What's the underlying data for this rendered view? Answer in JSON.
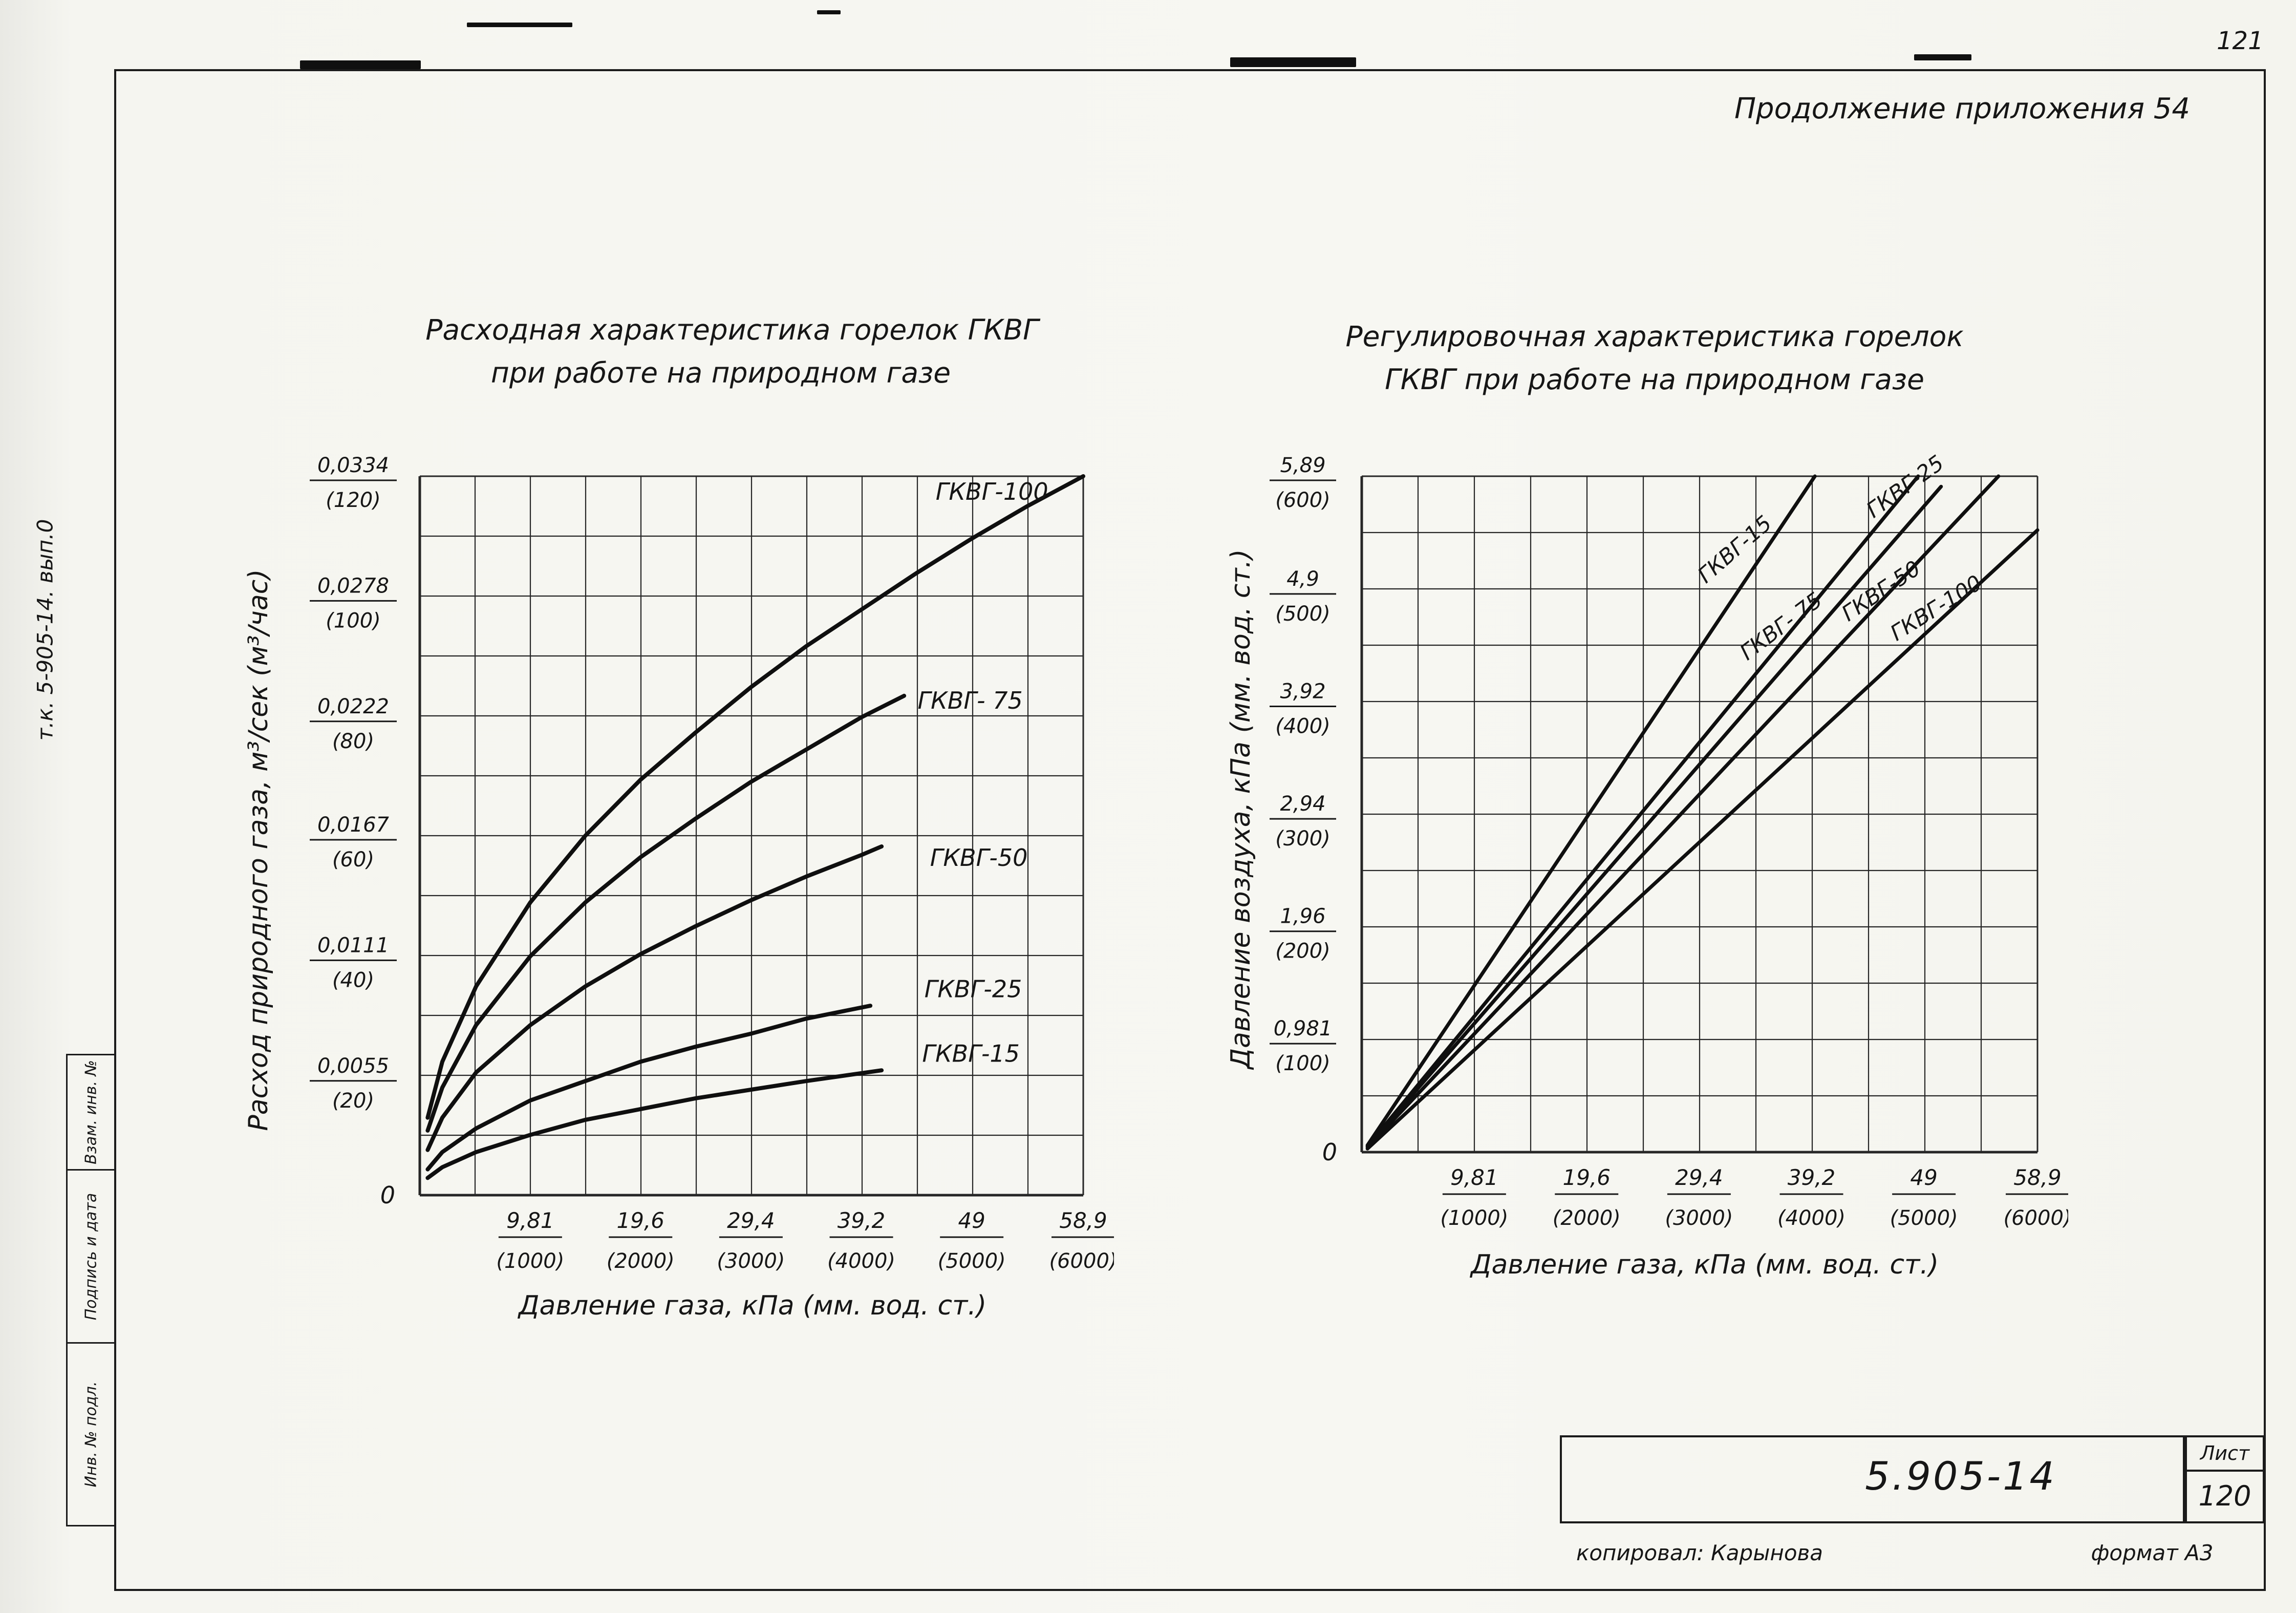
{
  "page": {
    "page_number": "121",
    "header": "Продолжение приложения 54",
    "side_note": "т.к. 5-905-14. вып.0",
    "stamp_cells": [
      "Взам. инв. №",
      "Подпись и дата",
      "Инв. № подл."
    ],
    "title_block": {
      "doc_number": "5.905-14",
      "sheet_label": "Лист",
      "sheet_number": "120"
    },
    "footer": {
      "copied_by": "копировал: Карынова",
      "format": "формат А3"
    }
  },
  "chart_data": [
    {
      "type": "line",
      "title_lines": [
        "Расходная характеристика горелок ГКВГ",
        "при работе на природном газе"
      ],
      "xlabel": "Давление газа, кПа (мм. вод. ст.)",
      "ylabel": "Расход природного газа, м³/сек (м³/час)",
      "xlim": [
        0,
        58.9
      ],
      "ylim": [
        0,
        0.0334
      ],
      "grid": {
        "cols": 12,
        "rows": 12,
        "on": true
      },
      "origin_label": "0",
      "x_ticks": [
        {
          "value": 9.81,
          "label": "9,81",
          "sub": "(1000)"
        },
        {
          "value": 19.6,
          "label": "19,6",
          "sub": "(2000)"
        },
        {
          "value": 29.4,
          "label": "29,4",
          "sub": "(3000)"
        },
        {
          "value": 39.2,
          "label": "39,2",
          "sub": "(4000)"
        },
        {
          "value": 49.0,
          "label": "49",
          "sub": "(5000)"
        },
        {
          "value": 58.9,
          "label": "58,9",
          "sub": "(6000)"
        }
      ],
      "y_ticks": [
        {
          "value": 0.0334,
          "label": "0,0334",
          "sub": "(120)"
        },
        {
          "value": 0.0278,
          "label": "0,0278",
          "sub": "(100)"
        },
        {
          "value": 0.0222,
          "label": "0,0222",
          "sub": "(80)"
        },
        {
          "value": 0.0167,
          "label": "0,0167",
          "sub": "(60)"
        },
        {
          "value": 0.0111,
          "label": "0,0111",
          "sub": "(40)"
        },
        {
          "value": 0.0055,
          "label": "0,0055",
          "sub": "(20)"
        }
      ],
      "series": [
        {
          "name": "ГКВГ-100",
          "label": "ГКВГ-100",
          "label_at": {
            "x": 45.8,
            "y": 0.0323,
            "rotate": 0
          },
          "points": [
            [
              0.7,
              0.0036
            ],
            [
              2,
              0.0062
            ],
            [
              5,
              0.0097
            ],
            [
              9.81,
              0.0136
            ],
            [
              14.7,
              0.0167
            ],
            [
              19.6,
              0.0193
            ],
            [
              24.5,
              0.0215
            ],
            [
              29.4,
              0.0236
            ],
            [
              34.3,
              0.0255
            ],
            [
              39.2,
              0.0272
            ],
            [
              44.1,
              0.0289
            ],
            [
              49,
              0.0305
            ],
            [
              53.9,
              0.032
            ],
            [
              58.9,
              0.0334
            ]
          ]
        },
        {
          "name": "ГКВГ-75",
          "label": "ГКВГ- 75",
          "label_at": {
            "x": 44.2,
            "y": 0.0226,
            "rotate": 0
          },
          "points": [
            [
              0.7,
              0.003
            ],
            [
              2,
              0.005
            ],
            [
              5,
              0.0079
            ],
            [
              9.81,
              0.0111
            ],
            [
              14.7,
              0.0136
            ],
            [
              19.6,
              0.0157
            ],
            [
              24.5,
              0.0175
            ],
            [
              29.4,
              0.0192
            ],
            [
              34.3,
              0.0207
            ],
            [
              39.2,
              0.0222
            ],
            [
              43,
              0.0232
            ]
          ]
        },
        {
          "name": "ГКВГ-50",
          "label": "ГКВГ-50",
          "label_at": {
            "x": 45.3,
            "y": 0.0153,
            "rotate": 0
          },
          "points": [
            [
              0.7,
              0.0021
            ],
            [
              2,
              0.0036
            ],
            [
              5,
              0.0057
            ],
            [
              9.81,
              0.0079
            ],
            [
              14.7,
              0.0097
            ],
            [
              19.6,
              0.0112
            ],
            [
              24.5,
              0.0125
            ],
            [
              29.4,
              0.0137
            ],
            [
              34.3,
              0.0148
            ],
            [
              39.2,
              0.0158
            ],
            [
              41,
              0.0162
            ]
          ]
        },
        {
          "name": "ГКВГ-25",
          "label": "ГКВГ-25",
          "label_at": {
            "x": 44.8,
            "y": 0.0092,
            "rotate": 0
          },
          "points": [
            [
              0.7,
              0.0012
            ],
            [
              2,
              0.002
            ],
            [
              5,
              0.0031
            ],
            [
              9.81,
              0.0044
            ],
            [
              14.7,
              0.0053
            ],
            [
              19.6,
              0.0062
            ],
            [
              24.5,
              0.0069
            ],
            [
              29.4,
              0.0075
            ],
            [
              34.3,
              0.0082
            ],
            [
              40,
              0.0088
            ]
          ]
        },
        {
          "name": "ГКВГ-15",
          "label": "ГКВГ-15",
          "label_at": {
            "x": 44.6,
            "y": 0.0062,
            "rotate": 0
          },
          "points": [
            [
              0.7,
              0.0008
            ],
            [
              2,
              0.0013
            ],
            [
              5,
              0.002
            ],
            [
              9.81,
              0.0028
            ],
            [
              14.7,
              0.0035
            ],
            [
              19.6,
              0.004
            ],
            [
              24.5,
              0.0045
            ],
            [
              29.4,
              0.0049
            ],
            [
              34.3,
              0.0053
            ],
            [
              41,
              0.0058
            ]
          ]
        }
      ]
    },
    {
      "type": "line",
      "title_lines": [
        "Регулировочная характеристика горелок",
        "ГКВГ при работе на природном газе"
      ],
      "xlabel": "Давление газа, кПа (мм. вод. ст.)",
      "ylabel": "Давление воздуха, кПа (мм. вод. ст.)",
      "xlim": [
        0,
        58.9
      ],
      "ylim": [
        0,
        5.89
      ],
      "grid": {
        "cols": 12,
        "rows": 12,
        "on": true
      },
      "origin_label": "0",
      "x_ticks": [
        {
          "value": 9.81,
          "label": "9,81",
          "sub": "(1000)"
        },
        {
          "value": 19.6,
          "label": "19,6",
          "sub": "(2000)"
        },
        {
          "value": 29.4,
          "label": "29,4",
          "sub": "(3000)"
        },
        {
          "value": 39.2,
          "label": "39,2",
          "sub": "(4000)"
        },
        {
          "value": 49.0,
          "label": "49",
          "sub": "(5000)"
        },
        {
          "value": 58.9,
          "label": "58,9",
          "sub": "(6000)"
        }
      ],
      "y_ticks": [
        {
          "value": 5.89,
          "label": "5,89",
          "sub": "(600)"
        },
        {
          "value": 4.9,
          "label": "4,9",
          "sub": "(500)"
        },
        {
          "value": 3.92,
          "label": "3,92",
          "sub": "(400)"
        },
        {
          "value": 2.94,
          "label": "2,94",
          "sub": "(300)"
        },
        {
          "value": 1.96,
          "label": "1,96",
          "sub": "(200)"
        },
        {
          "value": 0.981,
          "label": "0,981",
          "sub": "(100)"
        }
      ],
      "series": [
        {
          "name": "ГКВГ-15",
          "label": "ГКВГ-15",
          "label_at": {
            "x": 30.0,
            "y": 4.95,
            "rotate": -41
          },
          "points": [
            [
              0.5,
              0.06
            ],
            [
              39.5,
              5.89
            ]
          ]
        },
        {
          "name": "ГКВГ-25",
          "label": "ГКВГ-25",
          "label_at": {
            "x": 44.6,
            "y": 5.52,
            "rotate": -36
          },
          "points": [
            [
              0.5,
              0.05
            ],
            [
              48.5,
              5.89
            ]
          ]
        },
        {
          "name": "ГКВГ-75",
          "label": "ГКВГ- 75",
          "label_at": {
            "x": 33.6,
            "y": 4.28,
            "rotate": -37
          },
          "points": [
            [
              0.5,
              0.05
            ],
            [
              50.5,
              5.8
            ]
          ]
        },
        {
          "name": "ГКВГ-50",
          "label": "ГКВГ-50",
          "label_at": {
            "x": 42.4,
            "y": 4.62,
            "rotate": -34
          },
          "points": [
            [
              0.5,
              0.04
            ],
            [
              55.5,
              5.89
            ]
          ]
        },
        {
          "name": "ГКВГ-100",
          "label": "ГКВГ-100",
          "label_at": {
            "x": 46.6,
            "y": 4.45,
            "rotate": -32
          },
          "points": [
            [
              0.5,
              0.03
            ],
            [
              58.9,
              5.42
            ]
          ]
        }
      ]
    }
  ]
}
